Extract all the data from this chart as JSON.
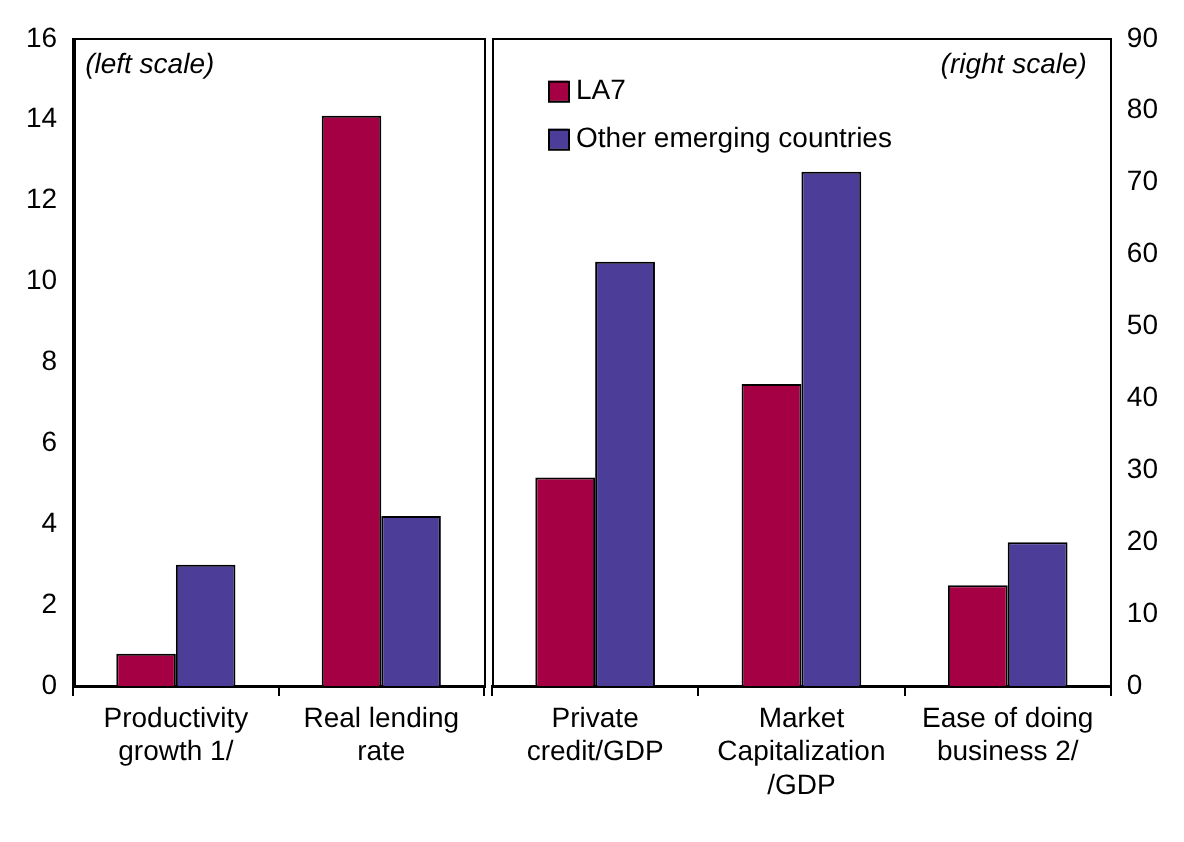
{
  "chart_data": [
    {
      "type": "bar",
      "categories": [
        "Productivity growth 1/",
        "Real lending rate"
      ],
      "series": [
        {
          "color": "#a50044",
          "values": [
            0.8,
            14.1
          ]
        },
        {
          "color": "#4b3d98",
          "values": [
            3.0,
            4.2
          ]
        }
      ],
      "ylim": [
        0,
        16
      ],
      "yticks": [
        0,
        2,
        4,
        6,
        8,
        10,
        12,
        14,
        16
      ],
      "grid": false,
      "annotations": [
        "(left scale)"
      ]
    },
    {
      "type": "bar",
      "categories": [
        "Private credit/GDP",
        "Market Capitalization /GDP",
        "Ease of doing business 2/"
      ],
      "series": [
        {
          "name": "LA7",
          "color": "#a50044",
          "values": [
            29,
            42,
            14
          ],
          "axis": "y2"
        },
        {
          "name": "Other emerging countries",
          "color": "#4b3d98",
          "values": [
            59,
            71.5,
            20
          ],
          "axis": "y2"
        }
      ],
      "y2lim": [
        0,
        90
      ],
      "y2ticks": [
        0,
        10,
        20,
        30,
        40,
        50,
        60,
        70,
        80,
        90
      ],
      "grid": false,
      "legend": "top left",
      "annotations": [
        "(right scale)"
      ]
    }
  ]
}
